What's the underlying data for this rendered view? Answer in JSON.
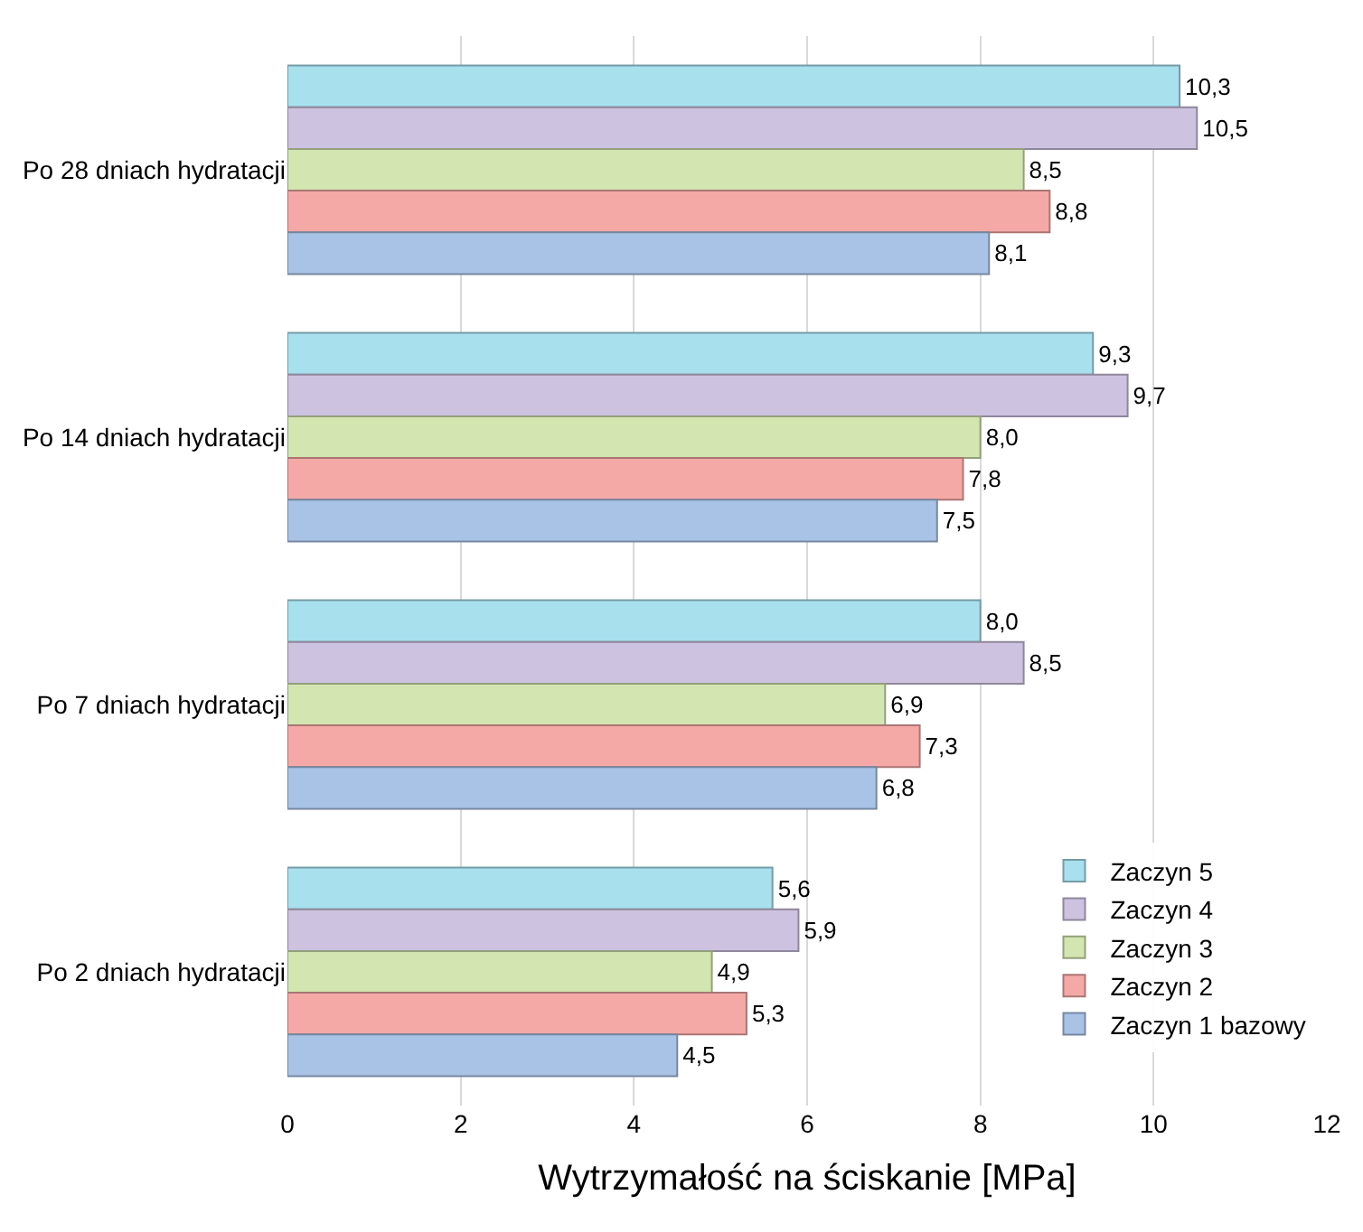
{
  "chart_data": {
    "type": "bar",
    "orientation": "horizontal",
    "xlabel": "Wytrzymałość na ściskanie [MPa]",
    "categories": [
      "Po 28 dniach hydratacji",
      "Po 14 dniach hydratacji",
      "Po 7 dniach hydratacji",
      "Po 2 dniach hydratacji"
    ],
    "series": [
      {
        "name": "Zaczyn 5",
        "color": "#a8e0ee",
        "values": [
          10.3,
          9.3,
          8.0,
          5.6
        ],
        "value_labels": [
          "10,3",
          "9,3",
          "8,0",
          "5,6"
        ]
      },
      {
        "name": "Zaczyn 4",
        "color": "#cdc2df",
        "values": [
          10.5,
          9.7,
          8.5,
          5.9
        ],
        "value_labels": [
          "10,5",
          "9,7",
          "8,5",
          "5,9"
        ]
      },
      {
        "name": "Zaczyn 3",
        "color": "#d3e5b0",
        "values": [
          8.5,
          8.0,
          6.9,
          4.9
        ],
        "value_labels": [
          "8,5",
          "8,0",
          "6,9",
          "4,9"
        ]
      },
      {
        "name": "Zaczyn 2",
        "color": "#f4a9a7",
        "values": [
          8.8,
          7.8,
          7.3,
          5.3
        ],
        "value_labels": [
          "8,8",
          "7,8",
          "7,3",
          "5,3"
        ]
      },
      {
        "name": "Zaczyn 1 bazowy",
        "color": "#a9c3e6",
        "values": [
          8.1,
          7.5,
          6.8,
          4.5
        ],
        "value_labels": [
          "8,1",
          "7,5",
          "6,8",
          "4,5"
        ]
      }
    ],
    "xlim": [
      0,
      12
    ],
    "xticks": [
      0,
      2,
      4,
      6,
      8,
      10,
      12
    ],
    "grid": "x",
    "legend": "bottom right"
  }
}
